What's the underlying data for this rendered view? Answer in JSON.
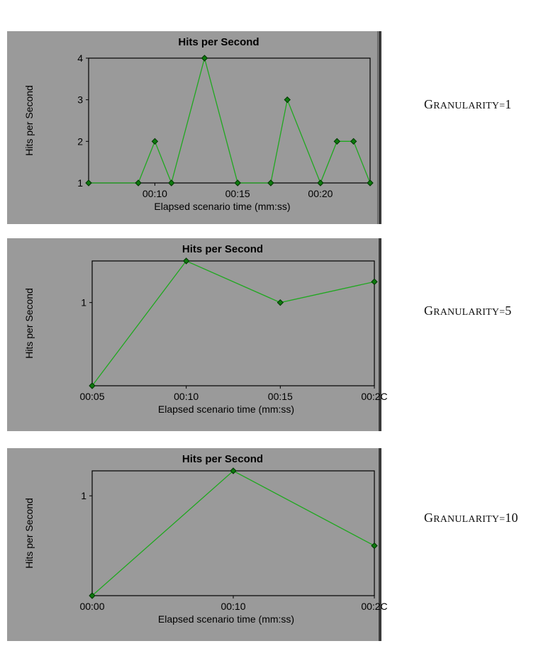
{
  "chart_data": [
    {
      "type": "line",
      "title": "Hits per Second",
      "xlabel": "Elapsed scenario time (mm:ss)",
      "ylabel": "Hits per Second",
      "xlim": [
        6,
        23
      ],
      "ylim": [
        1,
        4
      ],
      "x_ticks": [
        {
          "value": 10,
          "label": "00:10"
        },
        {
          "value": 15,
          "label": "00:15"
        },
        {
          "value": 20,
          "label": "00:20"
        }
      ],
      "y_ticks": [
        {
          "value": 1,
          "label": "1"
        },
        {
          "value": 2,
          "label": "2"
        },
        {
          "value": 3,
          "label": "3"
        },
        {
          "value": 4,
          "label": "4"
        }
      ],
      "x": [
        6,
        9,
        10,
        11,
        13,
        15,
        17,
        18,
        20,
        21,
        22,
        23
      ],
      "series": [
        {
          "values": [
            1,
            1,
            2,
            1,
            4,
            1,
            1,
            3,
            1,
            2,
            2,
            1
          ],
          "color": "#1fa81f"
        }
      ],
      "label": "Granularity=1"
    },
    {
      "type": "line",
      "title": "Hits per Second",
      "xlabel": "Elapsed scenario time (mm:ss)",
      "ylabel": "Hits per Second",
      "xlim": [
        5,
        20
      ],
      "ylim": [
        0.2,
        1.4
      ],
      "x_ticks": [
        {
          "value": 5,
          "label": "00:05"
        },
        {
          "value": 10,
          "label": "00:10"
        },
        {
          "value": 15,
          "label": "00:15"
        },
        {
          "value": 20,
          "label": "00:2C"
        }
      ],
      "y_ticks": [
        {
          "value": 1,
          "label": "1"
        }
      ],
      "x": [
        5,
        10,
        15,
        20
      ],
      "series": [
        {
          "values": [
            0.2,
            1.4,
            1.0,
            1.2
          ],
          "color": "#1fa81f"
        }
      ],
      "label": "Granularity=5"
    },
    {
      "type": "line",
      "title": "Hits per Second",
      "xlabel": "Elapsed scenario time (mm:ss)",
      "ylabel": "Hits per Second",
      "xlim": [
        0,
        20
      ],
      "ylim": [
        0.2,
        1.2
      ],
      "x_ticks": [
        {
          "value": 0,
          "label": "00:00"
        },
        {
          "value": 10,
          "label": "00:10"
        },
        {
          "value": 20,
          "label": "00:2C"
        }
      ],
      "y_ticks": [
        {
          "value": 1,
          "label": "1"
        }
      ],
      "x": [
        0,
        10,
        20
      ],
      "series": [
        {
          "values": [
            0.2,
            1.2,
            0.6
          ],
          "color": "#1fa81f"
        }
      ],
      "label": "Granularity=10"
    }
  ],
  "labels": {
    "g1": {
      "prefix": "Granularity=",
      "value": "1"
    },
    "g2": {
      "prefix": "Granularity=",
      "value": "5"
    },
    "g3": {
      "prefix": "Granularity=",
      "value": "10"
    }
  },
  "colors": {
    "panel_bg": "#9a9a9a",
    "plot_bg": "#9a9a9a",
    "series": "#1fa81f",
    "marker_fill": "#0d7a0d",
    "marker_stroke": "#003300"
  }
}
